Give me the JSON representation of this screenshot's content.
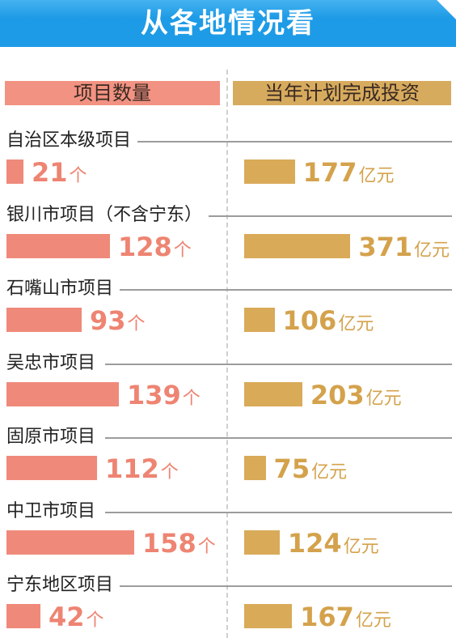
{
  "title": "从各地情况看",
  "chart_data": {
    "type": "bar",
    "columns": {
      "count": {
        "name": "项目数量",
        "unit": "个"
      },
      "invest": {
        "name": "当年计划完成投资",
        "unit": "亿元"
      }
    },
    "categories": [
      "自治区本级项目",
      "银川市项目（不含宁东）",
      "石嘴山市项目",
      "吴忠市项目",
      "固原市项目",
      "中卫市项目",
      "宁东地区项目"
    ],
    "series": [
      {
        "name": "项目数量",
        "values": [
          21,
          128,
          93,
          139,
          112,
          158,
          42
        ]
      },
      {
        "name": "当年计划完成投资",
        "values": [
          177,
          371,
          106,
          203,
          75,
          124,
          167
        ]
      }
    ]
  },
  "colors": {
    "title_bg": "#1e9be6",
    "count": "#ef8a7a",
    "invest": "#d9aa58"
  }
}
